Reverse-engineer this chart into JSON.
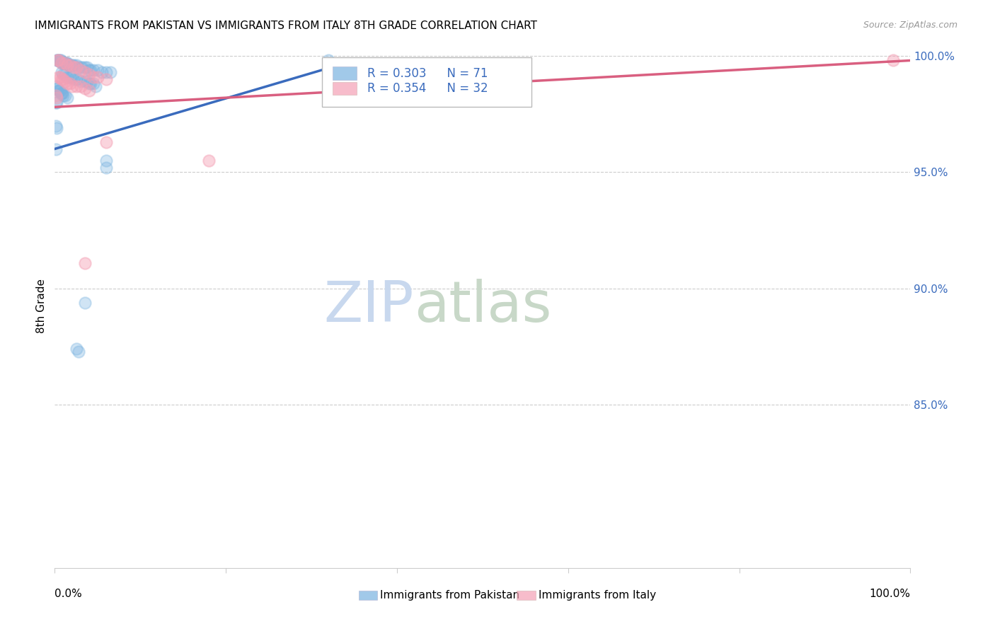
{
  "title": "IMMIGRANTS FROM PAKISTAN VS IMMIGRANTS FROM ITALY 8TH GRADE CORRELATION CHART",
  "source": "Source: ZipAtlas.com",
  "ylabel": "8th Grade",
  "xlim": [
    0.0,
    1.0
  ],
  "ylim": [
    0.78,
    1.005
  ],
  "yticks": [
    0.85,
    0.9,
    0.95,
    1.0
  ],
  "ytick_labels": [
    "85.0%",
    "90.0%",
    "95.0%",
    "100.0%"
  ],
  "pakistan_color": "#7ab3e0",
  "italy_color": "#f4a0b5",
  "pakistan_scatter": [
    [
      0.002,
      0.998
    ],
    [
      0.003,
      0.998
    ],
    [
      0.004,
      0.998
    ],
    [
      0.005,
      0.998
    ],
    [
      0.006,
      0.998
    ],
    [
      0.007,
      0.998
    ],
    [
      0.008,
      0.997
    ],
    [
      0.009,
      0.997
    ],
    [
      0.01,
      0.997
    ],
    [
      0.011,
      0.997
    ],
    [
      0.012,
      0.997
    ],
    [
      0.013,
      0.997
    ],
    [
      0.014,
      0.997
    ],
    [
      0.015,
      0.997
    ],
    [
      0.016,
      0.996
    ],
    [
      0.017,
      0.996
    ],
    [
      0.018,
      0.996
    ],
    [
      0.02,
      0.996
    ],
    [
      0.022,
      0.996
    ],
    [
      0.025,
      0.996
    ],
    [
      0.027,
      0.995
    ],
    [
      0.03,
      0.995
    ],
    [
      0.032,
      0.995
    ],
    [
      0.035,
      0.995
    ],
    [
      0.038,
      0.995
    ],
    [
      0.04,
      0.994
    ],
    [
      0.042,
      0.994
    ],
    [
      0.045,
      0.994
    ],
    [
      0.05,
      0.994
    ],
    [
      0.055,
      0.993
    ],
    [
      0.06,
      0.993
    ],
    [
      0.065,
      0.993
    ],
    [
      0.008,
      0.993
    ],
    [
      0.01,
      0.992
    ],
    [
      0.012,
      0.992
    ],
    [
      0.015,
      0.991
    ],
    [
      0.018,
      0.991
    ],
    [
      0.02,
      0.991
    ],
    [
      0.022,
      0.99
    ],
    [
      0.025,
      0.99
    ],
    [
      0.028,
      0.99
    ],
    [
      0.03,
      0.989
    ],
    [
      0.035,
      0.989
    ],
    [
      0.038,
      0.989
    ],
    [
      0.04,
      0.988
    ],
    [
      0.042,
      0.988
    ],
    [
      0.045,
      0.988
    ],
    [
      0.048,
      0.987
    ],
    [
      0.001,
      0.987
    ],
    [
      0.002,
      0.986
    ],
    [
      0.003,
      0.986
    ],
    [
      0.004,
      0.985
    ],
    [
      0.005,
      0.985
    ],
    [
      0.006,
      0.985
    ],
    [
      0.007,
      0.984
    ],
    [
      0.008,
      0.984
    ],
    [
      0.009,
      0.984
    ],
    [
      0.01,
      0.983
    ],
    [
      0.012,
      0.983
    ],
    [
      0.015,
      0.982
    ],
    [
      0.06,
      0.955
    ],
    [
      0.06,
      0.952
    ],
    [
      0.035,
      0.894
    ],
    [
      0.025,
      0.874
    ],
    [
      0.028,
      0.873
    ],
    [
      0.32,
      0.998
    ],
    [
      0.001,
      0.97
    ],
    [
      0.002,
      0.969
    ],
    [
      0.001,
      0.96
    ],
    [
      0.001,
      0.98
    ],
    [
      0.002,
      0.98
    ]
  ],
  "italy_scatter": [
    [
      0.003,
      0.998
    ],
    [
      0.005,
      0.998
    ],
    [
      0.008,
      0.997
    ],
    [
      0.012,
      0.997
    ],
    [
      0.015,
      0.996
    ],
    [
      0.018,
      0.996
    ],
    [
      0.022,
      0.995
    ],
    [
      0.025,
      0.995
    ],
    [
      0.03,
      0.994
    ],
    [
      0.035,
      0.993
    ],
    [
      0.04,
      0.992
    ],
    [
      0.045,
      0.991
    ],
    [
      0.05,
      0.991
    ],
    [
      0.06,
      0.99
    ],
    [
      0.004,
      0.991
    ],
    [
      0.006,
      0.991
    ],
    [
      0.008,
      0.99
    ],
    [
      0.01,
      0.99
    ],
    [
      0.012,
      0.989
    ],
    [
      0.015,
      0.988
    ],
    [
      0.018,
      0.988
    ],
    [
      0.02,
      0.987
    ],
    [
      0.025,
      0.987
    ],
    [
      0.03,
      0.987
    ],
    [
      0.035,
      0.986
    ],
    [
      0.04,
      0.985
    ],
    [
      0.001,
      0.983
    ],
    [
      0.002,
      0.982
    ],
    [
      0.06,
      0.963
    ],
    [
      0.18,
      0.955
    ],
    [
      0.035,
      0.911
    ],
    [
      0.98,
      0.998
    ]
  ],
  "pakistan_trend_x": [
    0.0,
    0.35
  ],
  "pakistan_trend_y": [
    0.96,
    0.998
  ],
  "italy_trend_x": [
    0.0,
    1.0
  ],
  "italy_trend_y": [
    0.978,
    0.998
  ],
  "grid_color": "#cccccc",
  "background_color": "#ffffff",
  "watermark_zip": "ZIP",
  "watermark_atlas": "atlas",
  "watermark_color_zip": "#c8d8ee",
  "watermark_color_atlas": "#c8d8c8",
  "legend_r1": "R = 0.303",
  "legend_n1": "N = 71",
  "legend_r2": "R = 0.354",
  "legend_n2": "N = 32",
  "title_fontsize": 11,
  "source_fontsize": 9,
  "tick_fontsize": 11
}
